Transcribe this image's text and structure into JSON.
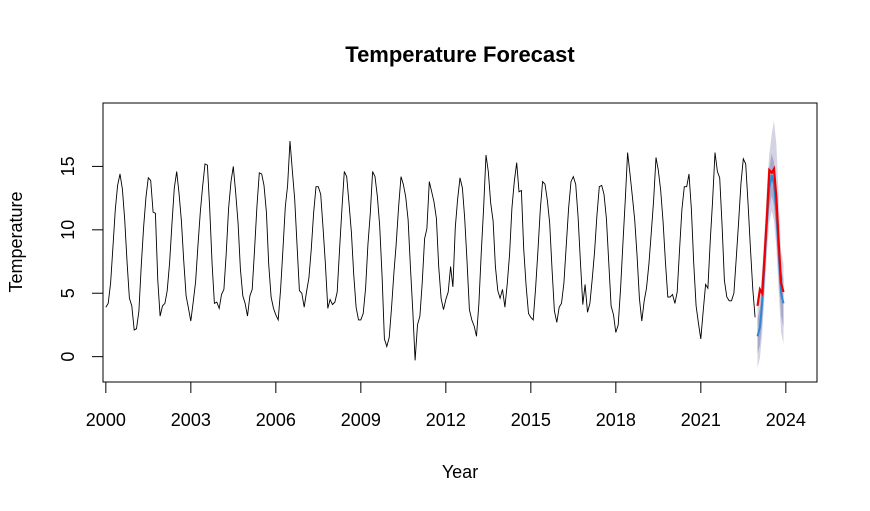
{
  "chart_data": {
    "type": "line",
    "title": "Temperature Forecast",
    "xlabel": "Year",
    "ylabel": "Temperature",
    "xlim": [
      1999.9,
      2025.1
    ],
    "ylim": [
      -2,
      20
    ],
    "x_ticks": [
      2000,
      2003,
      2006,
      2009,
      2012,
      2015,
      2018,
      2021,
      2024
    ],
    "y_ticks": [
      0,
      5,
      10,
      15
    ],
    "grid": false,
    "legend": "none",
    "colors": {
      "observed": "#000000",
      "forecast_mean": "#2f86d1",
      "actual": "#ee0000",
      "band_80": "#a9a9c9",
      "band_95": "#d3d3e3"
    },
    "series": [
      {
        "start": 2000.0,
        "step_years": 0.0833333,
        "values": [
          3.9,
          4.2,
          5.8,
          8.6,
          11.6,
          13.5,
          14.4,
          13.2,
          10.8,
          7.4,
          4.6,
          4.0,
          2.1,
          2.2,
          3.6,
          7.1,
          10.2,
          12.6,
          14.1,
          13.9,
          11.4,
          11.3,
          6.0,
          3.2,
          4.0,
          4.2,
          5.2,
          7.4,
          10.4,
          13.3,
          14.6,
          12.9,
          10.7,
          7.6,
          4.8,
          3.8,
          2.8,
          4.3,
          5.9,
          8.7,
          11.4,
          13.4,
          15.2,
          15.1,
          11.7,
          7.3,
          4.2,
          4.3,
          3.8,
          4.9,
          5.3,
          8.1,
          11.7,
          13.8,
          15.0,
          12.9,
          10.5,
          6.9,
          4.8,
          4.2,
          3.2,
          4.8,
          5.3,
          8.5,
          11.8,
          14.5,
          14.4,
          13.5,
          11.4,
          7.3,
          4.7,
          3.8,
          3.3,
          2.9,
          5.3,
          8.4,
          11.8,
          13.5,
          17.0,
          14.6,
          12.4,
          8.7,
          5.2,
          5.0,
          3.9,
          5.1,
          6.2,
          8.4,
          11.3,
          13.4,
          13.4,
          12.8,
          10.1,
          7.3,
          3.8,
          4.5,
          4.1,
          4.3,
          5.1,
          8.5,
          11.6,
          14.6,
          14.2,
          12.1,
          9.8,
          6.5,
          3.9,
          2.9,
          2.9,
          3.4,
          5.4,
          8.8,
          11.3,
          14.6,
          14.2,
          12.6,
          10.3,
          6.3,
          1.4,
          0.8,
          1.5,
          3.8,
          6.6,
          8.9,
          11.8,
          14.2,
          13.6,
          12.6,
          10.8,
          7.1,
          3.6,
          -0.3,
          2.5,
          3.2,
          5.8,
          9.3,
          10.1,
          13.8,
          13.0,
          12.2,
          10.9,
          7.1,
          4.6,
          3.7,
          4.5,
          5.1,
          7.1,
          5.5,
          10.2,
          12.4,
          14.1,
          13.3,
          10.9,
          7.4,
          3.7,
          2.9,
          2.4,
          1.6,
          4.2,
          8.1,
          11.7,
          15.9,
          14.6,
          12.1,
          10.7,
          7.1,
          5.2,
          4.6,
          5.3,
          3.9,
          5.7,
          8.1,
          11.7,
          13.8,
          15.3,
          13.0,
          13.1,
          8.5,
          5.6,
          3.4,
          3.1,
          2.9,
          5.4,
          8.3,
          11.6,
          13.8,
          13.6,
          12.3,
          10.5,
          6.8,
          3.6,
          2.7,
          3.9,
          4.2,
          5.8,
          8.7,
          11.7,
          13.8,
          14.2,
          13.6,
          11.0,
          7.5,
          4.1,
          5.7,
          3.5,
          4.2,
          6.1,
          8.3,
          11.1,
          13.4,
          13.5,
          12.8,
          10.9,
          7.5,
          4.0,
          3.3,
          1.9,
          2.5,
          5.4,
          8.9,
          12.4,
          16.1,
          14.4,
          12.6,
          10.8,
          7.9,
          4.6,
          2.8,
          4.4,
          5.4,
          7.3,
          9.7,
          12.3,
          15.7,
          14.7,
          13.1,
          10.6,
          7.5,
          4.7,
          4.7,
          4.9,
          4.2,
          5.1,
          8.5,
          11.6,
          13.4,
          13.4,
          14.4,
          11.6,
          7.4,
          4.0,
          2.6,
          1.4,
          3.6,
          5.7,
          5.4,
          9.2,
          12.3,
          16.1,
          14.6,
          14.1,
          10.3,
          6.0,
          4.7,
          4.4,
          4.4,
          5.0,
          7.7,
          10.6,
          13.7,
          15.6,
          15.2,
          12.0,
          8.6,
          5.3,
          3.1
        ]
      },
      {
        "name": "",
        "kind": "forecast_mean",
        "start": 2023.0,
        "step_years": 0.0833333,
        "values": [
          1.6,
          2.3,
          4.3,
          7.4,
          10.7,
          13.3,
          14.3,
          13.6,
          11.4,
          8.1,
          5.0,
          4.2
        ],
        "lower_80": [
          0.2,
          0.9,
          2.8,
          5.9,
          9.2,
          11.7,
          12.7,
          11.9,
          9.7,
          6.4,
          3.2,
          2.3
        ],
        "upper_80": [
          3.0,
          3.8,
          5.8,
          9.0,
          12.3,
          14.9,
          16.0,
          15.3,
          13.1,
          9.8,
          6.8,
          6.1
        ],
        "lower_95": [
          -0.9,
          -0.1,
          1.8,
          4.9,
          8.1,
          10.6,
          11.5,
          10.7,
          8.5,
          5.1,
          1.9,
          1.0
        ],
        "upper_95": [
          4.1,
          4.8,
          6.8,
          10.0,
          13.3,
          16.0,
          17.5,
          18.6,
          16.7,
          12.6,
          8.3,
          7.3
        ]
      },
      {
        "name": "",
        "kind": "actual",
        "start": 2023.0,
        "step_years": 0.0833333,
        "values": [
          4.0,
          5.3,
          5.0,
          8.0,
          11.0,
          14.7,
          14.5,
          14.8,
          12.5,
          9.0,
          5.8,
          5.1
        ]
      }
    ]
  }
}
